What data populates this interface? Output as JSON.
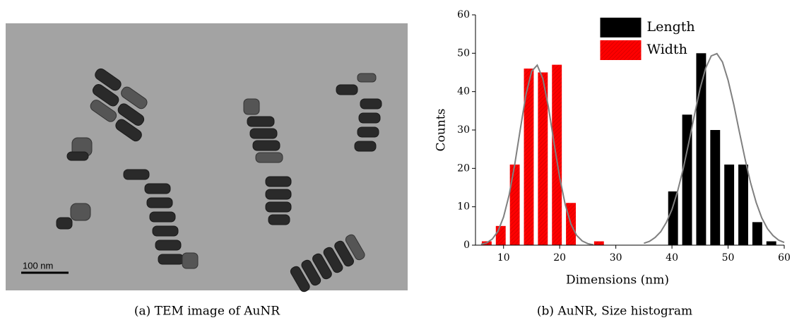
{
  "panel_a": {
    "scale_bar": "100 nm",
    "caption": "(a) TEM image of AuNR"
  },
  "chart_data": {
    "type": "bar",
    "caption": "(b) AuNR, Size histogram",
    "x_label": "Dimensions (nm)",
    "y_label": "Counts",
    "xlim": [
      5,
      60
    ],
    "xticks": [
      10,
      20,
      30,
      40,
      50,
      60
    ],
    "ylim": [
      0,
      60
    ],
    "yticks": [
      0,
      10,
      20,
      30,
      40,
      50,
      60
    ],
    "grid": false,
    "legend": "upper center",
    "series": [
      {
        "name": "Length",
        "color": "#000000",
        "x": [
          40.2,
          42.7,
          45.2,
          47.7,
          50.2,
          52.7,
          55.2,
          57.7
        ],
        "values": [
          14,
          34,
          50,
          30,
          21,
          21,
          6,
          1
        ]
      },
      {
        "name": "Width",
        "color": "#ff0000",
        "hatch": true,
        "x": [
          7,
          9.5,
          12,
          14.5,
          17,
          19.5,
          22,
          27
        ],
        "values": [
          1,
          5,
          21,
          46,
          45,
          47,
          11,
          1
        ]
      },
      {
        "type": "line",
        "color": "#808080",
        "x": [
          6,
          7,
          8,
          9,
          10,
          11,
          12,
          13,
          14,
          15,
          16,
          17,
          18,
          19,
          20,
          21,
          22,
          23,
          24,
          25,
          26
        ],
        "values": [
          0.2,
          0.6,
          1.6,
          3.6,
          7.3,
          13.1,
          21.1,
          30.4,
          39.3,
          45.3,
          46.9,
          43.4,
          35.9,
          26.6,
          17.6,
          10.5,
          5.5,
          2.6,
          1.1,
          0.4,
          0.1
        ]
      },
      {
        "type": "line",
        "color": "#808080",
        "x": [
          35,
          36,
          37,
          38,
          39,
          40,
          41,
          42,
          43,
          44,
          45,
          46,
          47,
          48,
          49,
          50,
          51,
          52,
          53,
          54,
          55,
          56,
          57,
          58,
          59,
          60
        ],
        "values": [
          0.5,
          1.0,
          2.0,
          3.5,
          5.9,
          9.3,
          14.0,
          19.9,
          26.7,
          33.9,
          40.7,
          46.1,
          49.3,
          49.9,
          47.7,
          43.0,
          36.7,
          29.6,
          22.6,
          16.3,
          11.1,
          7.1,
          4.3,
          2.5,
          1.3,
          0.7
        ]
      }
    ]
  }
}
